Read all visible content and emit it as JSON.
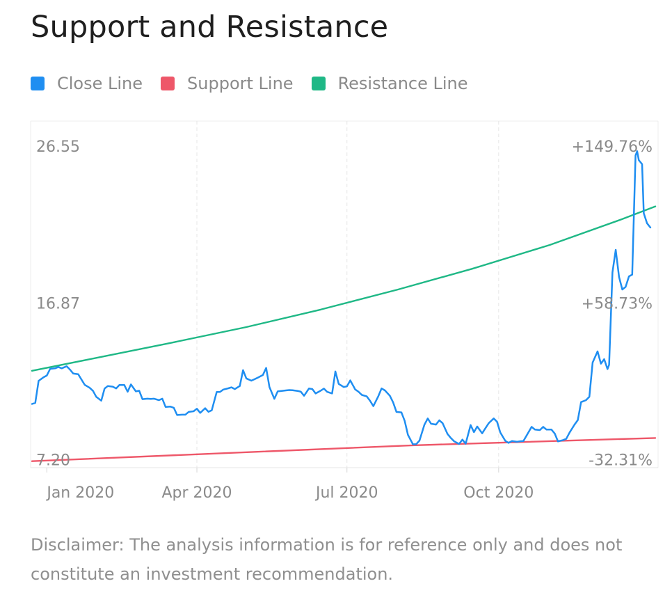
{
  "colors": {
    "close": "#1f8ef1",
    "support": "#ee5769",
    "resistance": "#1fb886",
    "label_text": "#8a8a8a",
    "grid": "#e6e6e6"
  },
  "chart_data": {
    "type": "line",
    "title": "Support and Resistance",
    "legend": [
      {
        "name": "Close Line",
        "color_key": "close"
      },
      {
        "name": "Support Line",
        "color_key": "support"
      },
      {
        "name": "Resistance Line",
        "color_key": "resistance"
      }
    ],
    "legend_placement": "top-left",
    "x_axis": {
      "type": "date",
      "range": [
        "2019-12-23",
        "2021-01-04"
      ],
      "ticks": [
        {
          "date": "2020-01-01",
          "label": "Jan 2020"
        },
        {
          "date": "2020-04-01",
          "label": "Apr 2020"
        },
        {
          "date": "2020-07-01",
          "label": "Jul 2020"
        },
        {
          "date": "2020-10-01",
          "label": "Oct 2020"
        }
      ]
    },
    "y_axis": {
      "ylim": [
        6.7,
        28.1
      ],
      "labels_left": [
        {
          "value": 26.55,
          "label": "26.55"
        },
        {
          "value": 16.87,
          "label": "16.87"
        },
        {
          "value": 7.2,
          "label": "7.20"
        }
      ],
      "labels_right": [
        {
          "value": 26.55,
          "label": "+149.76%"
        },
        {
          "value": 16.87,
          "label": "+58.73%"
        },
        {
          "value": 7.2,
          "label": "-32.31%"
        }
      ]
    },
    "grid": true,
    "series": [
      {
        "name": "Close Line",
        "color_key": "close",
        "points": [
          [
            "2019-12-23",
            10.63
          ],
          [
            "2019-12-25",
            10.7
          ],
          [
            "2019-12-27",
            12.06
          ],
          [
            "2019-12-30",
            12.28
          ],
          [
            "2020-01-01",
            12.39
          ],
          [
            "2020-01-03",
            12.8
          ],
          [
            "2020-01-06",
            12.83
          ],
          [
            "2020-01-08",
            12.92
          ],
          [
            "2020-01-10",
            12.83
          ],
          [
            "2020-01-13",
            12.96
          ],
          [
            "2020-01-15",
            12.76
          ],
          [
            "2020-01-17",
            12.51
          ],
          [
            "2020-01-20",
            12.47
          ],
          [
            "2020-01-22",
            12.14
          ],
          [
            "2020-01-24",
            11.81
          ],
          [
            "2020-01-27",
            11.63
          ],
          [
            "2020-01-29",
            11.44
          ],
          [
            "2020-01-31",
            11.07
          ],
          [
            "2020-02-03",
            10.84
          ],
          [
            "2020-02-05",
            11.58
          ],
          [
            "2020-02-07",
            11.74
          ],
          [
            "2020-02-10",
            11.7
          ],
          [
            "2020-02-12",
            11.59
          ],
          [
            "2020-02-14",
            11.8
          ],
          [
            "2020-02-17",
            11.8
          ],
          [
            "2020-02-19",
            11.39
          ],
          [
            "2020-02-21",
            11.84
          ],
          [
            "2020-02-24",
            11.41
          ],
          [
            "2020-02-26",
            11.45
          ],
          [
            "2020-02-28",
            10.93
          ],
          [
            "2020-03-02",
            10.96
          ],
          [
            "2020-03-04",
            10.94
          ],
          [
            "2020-03-06",
            10.96
          ],
          [
            "2020-03-09",
            10.87
          ],
          [
            "2020-03-11",
            10.96
          ],
          [
            "2020-03-13",
            10.45
          ],
          [
            "2020-03-16",
            10.47
          ],
          [
            "2020-03-18",
            10.39
          ],
          [
            "2020-03-20",
            9.95
          ],
          [
            "2020-03-23",
            9.97
          ],
          [
            "2020-03-25",
            9.97
          ],
          [
            "2020-03-27",
            10.14
          ],
          [
            "2020-03-30",
            10.18
          ],
          [
            "2020-04-01",
            10.34
          ],
          [
            "2020-04-03",
            10.08
          ],
          [
            "2020-04-06",
            10.37
          ],
          [
            "2020-04-08",
            10.15
          ],
          [
            "2020-04-10",
            10.24
          ],
          [
            "2020-04-13",
            11.37
          ],
          [
            "2020-04-15",
            11.37
          ],
          [
            "2020-04-17",
            11.52
          ],
          [
            "2020-04-20",
            11.6
          ],
          [
            "2020-04-22",
            11.66
          ],
          [
            "2020-04-24",
            11.55
          ],
          [
            "2020-04-27",
            11.74
          ],
          [
            "2020-04-29",
            12.72
          ],
          [
            "2020-05-01",
            12.21
          ],
          [
            "2020-05-04",
            12.07
          ],
          [
            "2020-05-06",
            12.16
          ],
          [
            "2020-05-08",
            12.26
          ],
          [
            "2020-05-11",
            12.42
          ],
          [
            "2020-05-13",
            12.86
          ],
          [
            "2020-05-15",
            11.68
          ],
          [
            "2020-05-18",
            10.95
          ],
          [
            "2020-05-20",
            11.41
          ],
          [
            "2020-05-22",
            11.43
          ],
          [
            "2020-05-25",
            11.47
          ],
          [
            "2020-05-27",
            11.49
          ],
          [
            "2020-05-29",
            11.48
          ],
          [
            "2020-06-01",
            11.44
          ],
          [
            "2020-06-03",
            11.39
          ],
          [
            "2020-06-05",
            11.14
          ],
          [
            "2020-06-08",
            11.59
          ],
          [
            "2020-06-10",
            11.55
          ],
          [
            "2020-06-12",
            11.28
          ],
          [
            "2020-06-15",
            11.45
          ],
          [
            "2020-06-17",
            11.58
          ],
          [
            "2020-06-19",
            11.38
          ],
          [
            "2020-06-22",
            11.28
          ],
          [
            "2020-06-24",
            12.64
          ],
          [
            "2020-06-26",
            11.87
          ],
          [
            "2020-06-29",
            11.68
          ],
          [
            "2020-07-01",
            11.72
          ],
          [
            "2020-07-03",
            12.09
          ],
          [
            "2020-07-06",
            11.53
          ],
          [
            "2020-07-08",
            11.39
          ],
          [
            "2020-07-10",
            11.19
          ],
          [
            "2020-07-13",
            11.1
          ],
          [
            "2020-07-15",
            10.83
          ],
          [
            "2020-07-17",
            10.5
          ],
          [
            "2020-07-20",
            11.11
          ],
          [
            "2020-07-22",
            11.59
          ],
          [
            "2020-07-24",
            11.47
          ],
          [
            "2020-07-27",
            11.14
          ],
          [
            "2020-07-29",
            10.73
          ],
          [
            "2020-07-31",
            10.14
          ],
          [
            "2020-08-03",
            10.11
          ],
          [
            "2020-08-05",
            9.59
          ],
          [
            "2020-08-07",
            8.73
          ],
          [
            "2020-08-10",
            8.14
          ],
          [
            "2020-08-12",
            8.15
          ],
          [
            "2020-08-14",
            8.37
          ],
          [
            "2020-08-17",
            9.35
          ],
          [
            "2020-08-19",
            9.74
          ],
          [
            "2020-08-21",
            9.41
          ],
          [
            "2020-08-24",
            9.36
          ],
          [
            "2020-08-26",
            9.62
          ],
          [
            "2020-08-28",
            9.45
          ],
          [
            "2020-08-31",
            8.78
          ],
          [
            "2020-09-02",
            8.53
          ],
          [
            "2020-09-04",
            8.33
          ],
          [
            "2020-09-07",
            8.16
          ],
          [
            "2020-09-09",
            8.43
          ],
          [
            "2020-09-11",
            8.18
          ],
          [
            "2020-09-14",
            9.33
          ],
          [
            "2020-09-16",
            8.89
          ],
          [
            "2020-09-18",
            9.24
          ],
          [
            "2020-09-21",
            8.82
          ],
          [
            "2020-09-23",
            9.14
          ],
          [
            "2020-09-25",
            9.45
          ],
          [
            "2020-09-28",
            9.74
          ],
          [
            "2020-09-30",
            9.54
          ],
          [
            "2020-10-02",
            8.87
          ],
          [
            "2020-10-05",
            8.36
          ],
          [
            "2020-10-07",
            8.23
          ],
          [
            "2020-10-09",
            8.34
          ],
          [
            "2020-10-12",
            8.3
          ],
          [
            "2020-10-14",
            8.33
          ],
          [
            "2020-10-16",
            8.34
          ],
          [
            "2020-10-19",
            8.87
          ],
          [
            "2020-10-21",
            9.22
          ],
          [
            "2020-10-23",
            9.05
          ],
          [
            "2020-10-26",
            9.02
          ],
          [
            "2020-10-28",
            9.22
          ],
          [
            "2020-10-30",
            9.05
          ],
          [
            "2020-11-02",
            9.05
          ],
          [
            "2020-11-04",
            8.81
          ],
          [
            "2020-11-06",
            8.32
          ],
          [
            "2020-11-09",
            8.4
          ],
          [
            "2020-11-11",
            8.48
          ],
          [
            "2020-11-13",
            8.86
          ],
          [
            "2020-11-16",
            9.36
          ],
          [
            "2020-11-18",
            9.64
          ],
          [
            "2020-11-20",
            10.75
          ],
          [
            "2020-11-23",
            10.87
          ],
          [
            "2020-11-25",
            11.08
          ],
          [
            "2020-11-27",
            13.19
          ],
          [
            "2020-11-30",
            13.88
          ],
          [
            "2020-12-02",
            13.12
          ],
          [
            "2020-12-04",
            13.4
          ],
          [
            "2020-12-06",
            12.79
          ],
          [
            "2020-12-07",
            13.05
          ],
          [
            "2020-12-09",
            18.76
          ],
          [
            "2020-12-11",
            20.15
          ],
          [
            "2020-12-13",
            18.47
          ],
          [
            "2020-12-15",
            17.7
          ],
          [
            "2020-12-17",
            17.86
          ],
          [
            "2020-12-19",
            18.51
          ],
          [
            "2020-12-21",
            18.62
          ],
          [
            "2020-12-23",
            25.98
          ],
          [
            "2020-12-24",
            26.24
          ],
          [
            "2020-12-25",
            25.69
          ],
          [
            "2020-12-27",
            25.44
          ],
          [
            "2020-12-28",
            22.41
          ],
          [
            "2020-12-30",
            21.79
          ],
          [
            "2021-01-01",
            21.53
          ]
        ]
      },
      {
        "name": "Support Line",
        "color_key": "support",
        "points": [
          [
            "2019-12-23",
            7.1
          ],
          [
            "2020-08-10",
            8.08
          ],
          [
            "2021-01-04",
            8.53
          ]
        ]
      },
      {
        "name": "Resistance Line",
        "color_key": "resistance",
        "points": [
          [
            "2019-12-23",
            12.68
          ],
          [
            "2020-02-01",
            13.5
          ],
          [
            "2020-03-15",
            14.38
          ],
          [
            "2020-05-01",
            15.38
          ],
          [
            "2020-06-15",
            16.46
          ],
          [
            "2020-08-01",
            17.7
          ],
          [
            "2020-09-15",
            18.98
          ],
          [
            "2020-11-01",
            20.45
          ],
          [
            "2020-12-15",
            22.05
          ],
          [
            "2021-01-04",
            22.83
          ]
        ]
      }
    ]
  },
  "disclaimer": "Disclaimer: The analysis information is for reference only and does not constitute an investment recommendation."
}
